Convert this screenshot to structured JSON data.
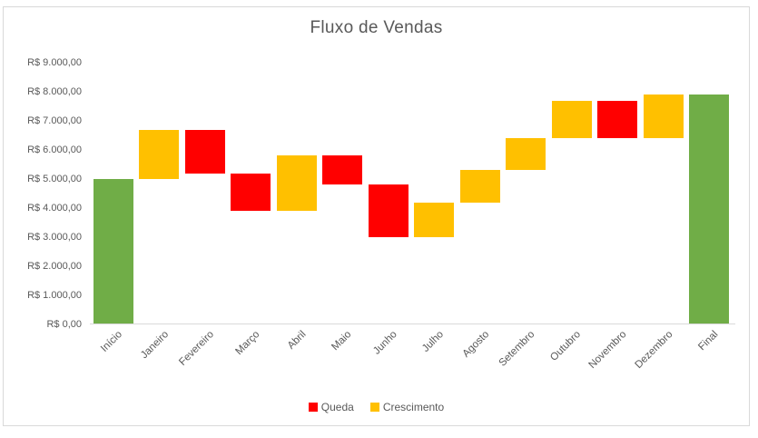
{
  "chart_data": {
    "type": "waterfall-bar",
    "title": "Fluxo de Vendas",
    "currency_prefix": "R$",
    "categories": [
      "Início",
      "Janeiro",
      "Fevereiro",
      "Março",
      "Abril",
      "Maio",
      "Junho",
      "Julho",
      "Agosto",
      "Setembro",
      "Outubro",
      "Novembro",
      "Dezembro",
      "Final"
    ],
    "bars": [
      {
        "label": "Início",
        "kind": "total",
        "start": 0,
        "end": 5000,
        "delta": 5000
      },
      {
        "label": "Janeiro",
        "kind": "increase",
        "start": 5000,
        "end": 6700,
        "delta": 1700
      },
      {
        "label": "Fevereiro",
        "kind": "decrease",
        "start": 6700,
        "end": 5200,
        "delta": -1500
      },
      {
        "label": "Março",
        "kind": "decrease",
        "start": 5200,
        "end": 3900,
        "delta": -1300
      },
      {
        "label": "Abril",
        "kind": "increase",
        "start": 3900,
        "end": 5800,
        "delta": 1900
      },
      {
        "label": "Maio",
        "kind": "decrease",
        "start": 5800,
        "end": 4800,
        "delta": -1000
      },
      {
        "label": "Junho",
        "kind": "decrease",
        "start": 4800,
        "end": 3000,
        "delta": -1800
      },
      {
        "label": "Julho",
        "kind": "increase",
        "start": 3000,
        "end": 4200,
        "delta": 1200
      },
      {
        "label": "Agosto",
        "kind": "increase",
        "start": 4200,
        "end": 5300,
        "delta": 1100
      },
      {
        "label": "Setembro",
        "kind": "increase",
        "start": 5300,
        "end": 6400,
        "delta": 1100
      },
      {
        "label": "Outubro",
        "kind": "increase",
        "start": 6400,
        "end": 7700,
        "delta": 1300
      },
      {
        "label": "Novembro",
        "kind": "decrease",
        "start": 7700,
        "end": 6400,
        "delta": -1300
      },
      {
        "label": "Dezembro",
        "kind": "increase",
        "start": 6400,
        "end": 7900,
        "delta": 1500
      },
      {
        "label": "Final",
        "kind": "total",
        "start": 0,
        "end": 7900,
        "delta": 7900
      }
    ],
    "y_axis": {
      "min": 0,
      "max": 9000,
      "tick_step": 1000,
      "ticks": [
        {
          "value": 9000,
          "label": "R$ 9.000,00"
        },
        {
          "value": 8000,
          "label": "R$ 8.000,00"
        },
        {
          "value": 7000,
          "label": "R$ 7.000,00"
        },
        {
          "value": 6000,
          "label": "R$ 6.000,00"
        },
        {
          "value": 5000,
          "label": "R$ 5.000,00"
        },
        {
          "value": 4000,
          "label": "R$ 4.000,00"
        },
        {
          "value": 3000,
          "label": "R$ 3.000,00"
        },
        {
          "value": 2000,
          "label": "R$ 2.000,00"
        },
        {
          "value": 1000,
          "label": "R$ 1.000,00"
        },
        {
          "value": 0,
          "label": "R$ 0,00"
        }
      ]
    },
    "legend": [
      {
        "label": "Queda",
        "color_key": "decrease"
      },
      {
        "label": "Crescimento",
        "color_key": "increase"
      }
    ],
    "legend_position": "bottom-center",
    "grid": false,
    "colors": {
      "increase": "#FFC000",
      "decrease": "#FF0000",
      "total": "#70AD47",
      "axis_line": "#D9D9D9",
      "text": "#595959",
      "frame_border": "#D9D9D9",
      "background": "#FFFFFF"
    }
  }
}
